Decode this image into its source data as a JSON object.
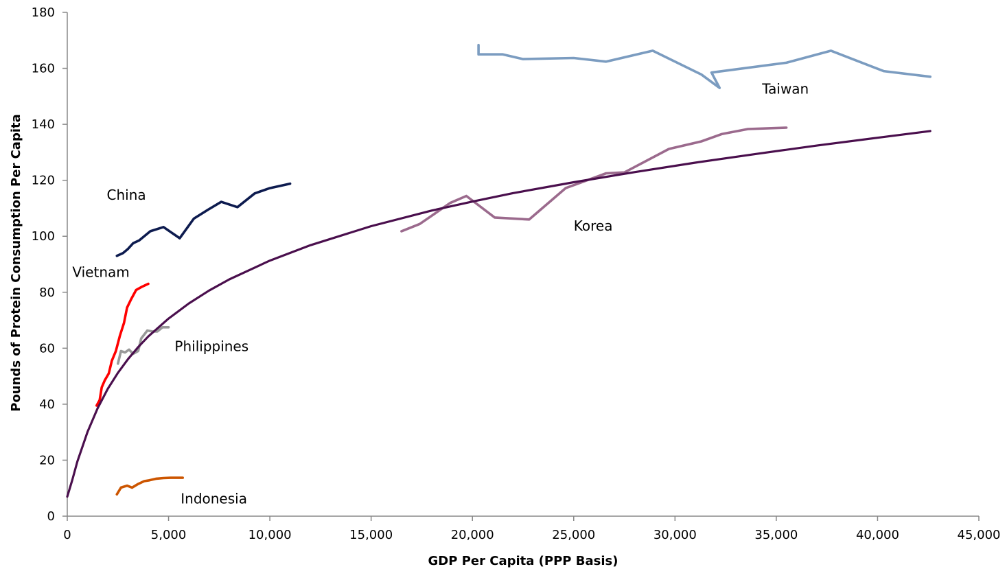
{
  "chart_data": {
    "type": "line",
    "title": "",
    "xlabel": "GDP Per Capita (PPP Basis)",
    "ylabel": "Pounds of Protein Consumption Per Capita",
    "xlim": [
      0,
      45000
    ],
    "ylim": [
      0,
      180
    ],
    "x_ticks": [
      "0",
      "5,000",
      "10,000",
      "15,000",
      "20,000",
      "25,000",
      "30,000",
      "35,000",
      "40,000",
      "45,000"
    ],
    "y_ticks": [
      "0",
      "20",
      "40",
      "60",
      "80",
      "100",
      "120",
      "140",
      "160",
      "180"
    ],
    "x_tick_values": [
      0,
      5000,
      10000,
      15000,
      20000,
      25000,
      30000,
      35000,
      40000,
      45000
    ],
    "y_tick_values": [
      0,
      20,
      40,
      60,
      80,
      100,
      120,
      140,
      160,
      180
    ],
    "grid": false,
    "legend": "none (series labeled directly on plot)",
    "series": [
      {
        "name": "China",
        "color": "#0d1b4f",
        "points": [
          [
            2450,
            93
          ],
          [
            2750,
            94
          ],
          [
            3000,
            95.5
          ],
          [
            3250,
            97.5
          ],
          [
            3550,
            98.5
          ],
          [
            4100,
            101.8
          ],
          [
            4750,
            103.3
          ],
          [
            5550,
            99.3
          ],
          [
            6250,
            106.3
          ],
          [
            6950,
            109.5
          ],
          [
            7600,
            112.3
          ],
          [
            8400,
            110.4
          ],
          [
            9250,
            115.3
          ],
          [
            10000,
            117.2
          ],
          [
            11000,
            118.8
          ]
        ]
      },
      {
        "name": "Vietnam",
        "color": "#ff0000",
        "points": [
          [
            1450,
            39.5
          ],
          [
            1600,
            41.5
          ],
          [
            1700,
            46
          ],
          [
            1850,
            48.5
          ],
          [
            2050,
            51
          ],
          [
            2200,
            55.5
          ],
          [
            2400,
            59
          ],
          [
            2600,
            64.5
          ],
          [
            2800,
            69
          ],
          [
            2950,
            74.5
          ],
          [
            3150,
            77.5
          ],
          [
            3400,
            80.8
          ],
          [
            3700,
            82
          ],
          [
            4000,
            83
          ]
        ]
      },
      {
        "name": "Philippines",
        "color": "#999999",
        "points": [
          [
            2500,
            54.5
          ],
          [
            2650,
            59
          ],
          [
            2850,
            58.5
          ],
          [
            3050,
            59.5
          ],
          [
            3250,
            58
          ],
          [
            3500,
            59
          ],
          [
            3650,
            63.5
          ],
          [
            3950,
            66.3
          ],
          [
            4200,
            66
          ],
          [
            4450,
            66
          ],
          [
            4700,
            67.5
          ],
          [
            5000,
            67.5
          ]
        ]
      },
      {
        "name": "Indonesia",
        "color": "#cc5500",
        "points": [
          [
            2450,
            7.8
          ],
          [
            2650,
            10.2
          ],
          [
            2950,
            10.9
          ],
          [
            3200,
            10.2
          ],
          [
            3500,
            11.5
          ],
          [
            3800,
            12.5
          ],
          [
            4050,
            12.8
          ],
          [
            4400,
            13.4
          ],
          [
            4750,
            13.6
          ],
          [
            5100,
            13.7
          ],
          [
            5700,
            13.7
          ]
        ]
      },
      {
        "name": "Korea",
        "color": "#9b6a8d",
        "points": [
          [
            16500,
            101.8
          ],
          [
            17400,
            104.4
          ],
          [
            18900,
            111.9
          ],
          [
            19700,
            114.4
          ],
          [
            21100,
            106.7
          ],
          [
            22800,
            106
          ],
          [
            24600,
            117.2
          ],
          [
            26600,
            122.5
          ],
          [
            27500,
            122.8
          ],
          [
            29700,
            131.2
          ],
          [
            31300,
            133.9
          ],
          [
            32300,
            136.5
          ],
          [
            33600,
            138.3
          ],
          [
            35500,
            138.8
          ]
        ]
      },
      {
        "name": "Taiwan",
        "color": "#7b9cc0",
        "points": [
          [
            20300,
            168.3
          ],
          [
            20300,
            165
          ],
          [
            21500,
            165
          ],
          [
            22500,
            163.3
          ],
          [
            25000,
            163.7
          ],
          [
            26600,
            162.4
          ],
          [
            28900,
            166.3
          ],
          [
            31300,
            157.8
          ],
          [
            32200,
            153
          ],
          [
            31800,
            158.5
          ],
          [
            35500,
            162
          ],
          [
            37700,
            166.3
          ],
          [
            40300,
            159
          ],
          [
            42600,
            157
          ]
        ]
      },
      {
        "name": "",
        "color": "#4a0f4d",
        "trend": true,
        "points": [
          [
            0,
            7
          ],
          [
            250,
            13
          ],
          [
            500,
            19.6
          ],
          [
            1000,
            30.1
          ],
          [
            1500,
            38.6
          ],
          [
            2000,
            45.5
          ],
          [
            2500,
            51.2
          ],
          [
            3000,
            56.1
          ],
          [
            3500,
            60.4
          ],
          [
            4000,
            64.2
          ],
          [
            5000,
            70.6
          ],
          [
            6000,
            76
          ],
          [
            7000,
            80.6
          ],
          [
            8000,
            84.6
          ],
          [
            10000,
            91.3
          ],
          [
            12000,
            96.8
          ],
          [
            15000,
            103.6
          ],
          [
            18000,
            109.2
          ],
          [
            20000,
            112.4
          ],
          [
            22000,
            115.4
          ],
          [
            25000,
            119.3
          ],
          [
            28000,
            122.9
          ],
          [
            31000,
            126.3
          ],
          [
            34000,
            129.4
          ],
          [
            37000,
            132.4
          ],
          [
            40000,
            135.2
          ],
          [
            42600,
            137.6
          ]
        ]
      }
    ],
    "annotations": [
      {
        "text": "China",
        "x": 1950,
        "y": 113
      },
      {
        "text": "Vietnam",
        "x": 250,
        "y": 85.5
      },
      {
        "text": "Philippines",
        "x": 5300,
        "y": 59
      },
      {
        "text": "Indonesia",
        "x": 5600,
        "y": 4.5
      },
      {
        "text": "Korea",
        "x": 25000,
        "y": 102
      },
      {
        "text": "Taiwan",
        "x": 34300,
        "y": 151
      }
    ]
  }
}
